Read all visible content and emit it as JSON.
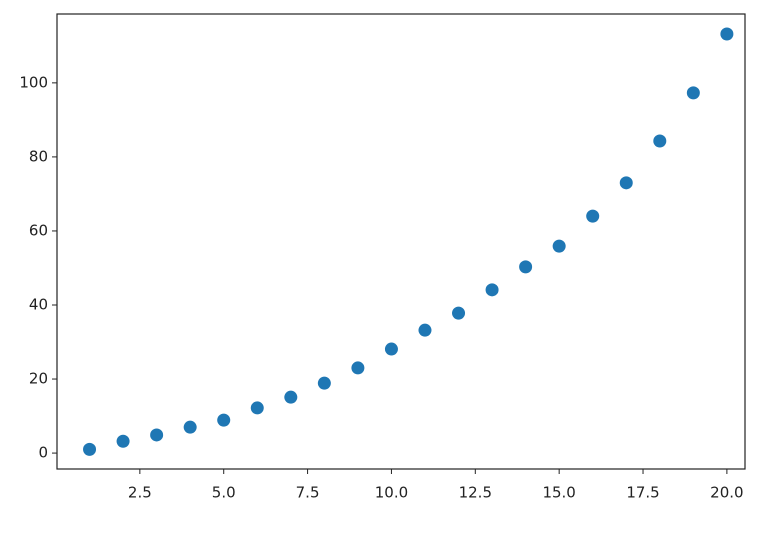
{
  "chart_data": {
    "type": "scatter",
    "color": "#1f77b4",
    "x": [
      1,
      2,
      3,
      4,
      5,
      6,
      7,
      8,
      9,
      10,
      11,
      12,
      13,
      14,
      15,
      16,
      17,
      18,
      19,
      20
    ],
    "values": [
      1,
      3.2,
      4.9,
      7,
      8.9,
      12.2,
      15.1,
      18.9,
      23,
      28.1,
      33.2,
      37.8,
      44.1,
      50.3,
      55.9,
      64,
      73,
      84.3,
      97.3,
      113.2
    ],
    "xlim": [
      0.03,
      20.54
    ],
    "ylim": [
      -4.3,
      118.6
    ],
    "xticks": [
      2.5,
      {
        "value": 5,
        "label": "5.0"
      },
      7.5,
      {
        "value": 10,
        "label": "10.0"
      },
      12.5,
      {
        "value": 15,
        "label": "15.0"
      },
      17.5,
      {
        "value": 20,
        "label": "20.0"
      }
    ],
    "yticks": [
      0,
      20,
      40,
      60,
      80,
      100
    ]
  }
}
